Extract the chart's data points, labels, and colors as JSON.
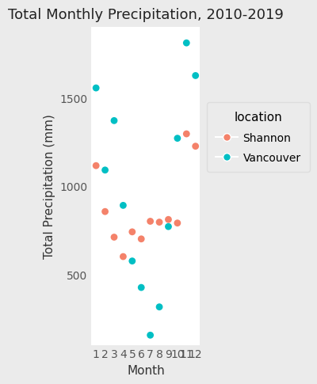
{
  "title": "Total Monthly Precipitation, 2010-2019",
  "xlabel": "Month",
  "ylabel": "Total Precipitation (mm)",
  "shannon": {
    "months": [
      1,
      2,
      3,
      4,
      5,
      6,
      7,
      8,
      9,
      10,
      11,
      12
    ],
    "values": [
      1115,
      855,
      710,
      600,
      740,
      700,
      800,
      795,
      810,
      790,
      1295,
      1225
    ]
  },
  "vancouver": {
    "months": [
      1,
      2,
      3,
      4,
      5,
      6,
      7,
      8,
      9,
      10,
      11,
      12
    ],
    "values": [
      1555,
      1090,
      1370,
      890,
      575,
      425,
      155,
      315,
      770,
      1270,
      1810,
      1625
    ]
  },
  "shannon_color": "#F4826A",
  "vancouver_color": "#00BFC4",
  "background_color": "#EBEBEB",
  "panel_color": "#FFFFFF",
  "grid_color": "#FFFFFF",
  "xlim": [
    0.5,
    12.5
  ],
  "ylim": [
    100,
    1900
  ],
  "yticks": [
    500,
    1000,
    1500
  ],
  "xticks": [
    1,
    2,
    3,
    4,
    5,
    6,
    7,
    8,
    9,
    10,
    11,
    12
  ],
  "marker_size": 40,
  "title_fontsize": 13,
  "label_fontsize": 11,
  "tick_fontsize": 10,
  "legend_title": "location",
  "legend_title_fontsize": 11,
  "legend_fontsize": 10
}
